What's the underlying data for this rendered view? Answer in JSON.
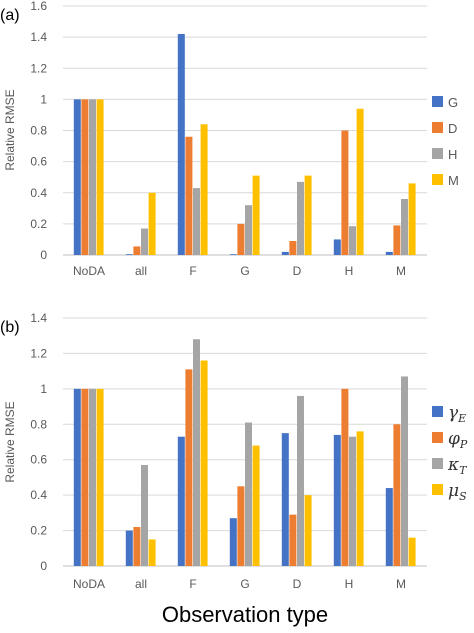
{
  "chart_data": [
    {
      "type": "bar",
      "panel_label": "(a)",
      "ylabel": "Relative RMSE",
      "ylim": [
        0,
        1.6
      ],
      "yticks": [
        "0",
        "0.2",
        "0.4",
        "0.6",
        "0.8",
        "1",
        "1.2",
        "1.4",
        "1.6"
      ],
      "grid": true,
      "legend_position": "right",
      "categories": [
        "NoDA",
        "all",
        "F",
        "G",
        "D",
        "H",
        "M"
      ],
      "series": [
        {
          "name": "G",
          "color": "#4472C4",
          "values": [
            1.0,
            0.005,
            1.42,
            0.005,
            0.02,
            0.1,
            0.02
          ]
        },
        {
          "name": "D",
          "color": "#ED7D31",
          "values": [
            1.0,
            0.055,
            0.76,
            0.2,
            0.09,
            0.8,
            0.19
          ]
        },
        {
          "name": "H",
          "color": "#A5A5A5",
          "values": [
            1.0,
            0.17,
            0.43,
            0.32,
            0.47,
            0.185,
            0.36
          ]
        },
        {
          "name": "M",
          "color": "#FFC000",
          "values": [
            1.0,
            0.4,
            0.84,
            0.51,
            0.51,
            0.94,
            0.46
          ]
        }
      ]
    },
    {
      "type": "bar",
      "panel_label": "(b)",
      "ylabel": "Relative RMSE",
      "ylim": [
        0,
        1.4
      ],
      "yticks": [
        "0",
        "0.2",
        "0.4",
        "0.6",
        "0.8",
        "1",
        "1.2",
        "1.4"
      ],
      "grid": true,
      "legend_position": "right",
      "xlabel": "Observation type",
      "categories": [
        "NoDA",
        "all",
        "F",
        "G",
        "D",
        "H",
        "M"
      ],
      "series": [
        {
          "name": "γ",
          "sub": "E",
          "color": "#4472C4",
          "values": [
            1.0,
            0.2,
            0.73,
            0.27,
            0.75,
            0.74,
            0.44
          ]
        },
        {
          "name": "φ",
          "sub": "P",
          "color": "#ED7D31",
          "values": [
            1.0,
            0.22,
            1.11,
            0.45,
            0.29,
            1.0,
            0.8
          ]
        },
        {
          "name": "κ",
          "sub": "T",
          "color": "#A5A5A5",
          "values": [
            1.0,
            0.57,
            1.28,
            0.81,
            0.96,
            0.73,
            1.07
          ]
        },
        {
          "name": "μ",
          "sub": "S",
          "color": "#FFC000",
          "values": [
            1.0,
            0.15,
            1.16,
            0.68,
            0.4,
            0.76,
            0.16
          ]
        }
      ]
    }
  ]
}
